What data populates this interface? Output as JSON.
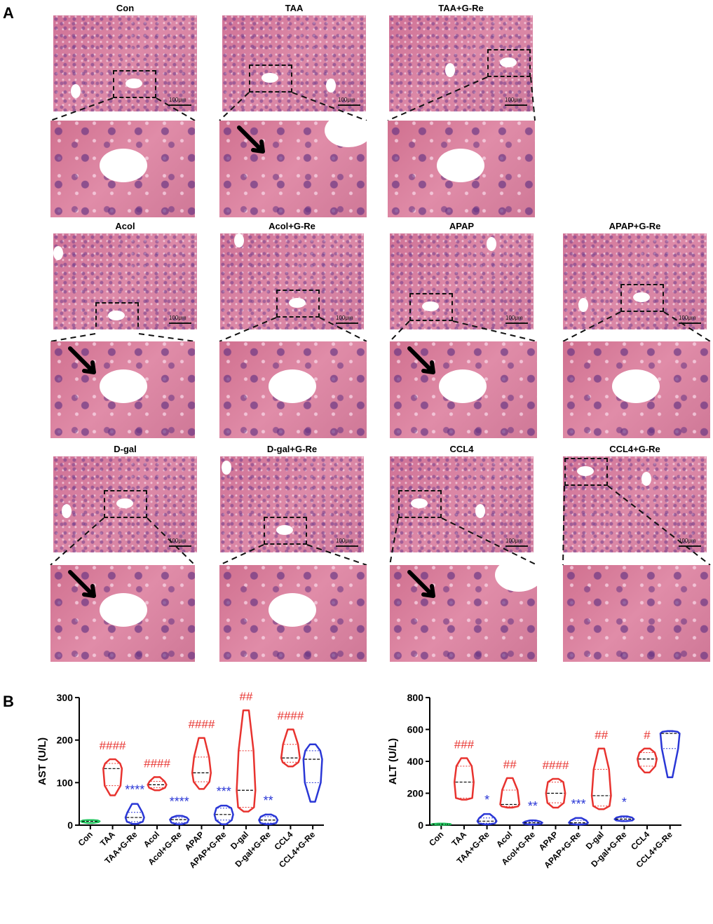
{
  "panel_a": {
    "letter": "A",
    "scale_label": "100μm",
    "panels": [
      {
        "title": "Con"
      },
      {
        "title": "TAA"
      },
      {
        "title": "TAA+G-Re"
      },
      {
        "title": "Acol"
      },
      {
        "title": "Acol+G-Re"
      },
      {
        "title": "APAP"
      },
      {
        "title": "APAP+G-Re"
      },
      {
        "title": "D-gal"
      },
      {
        "title": "D-gal+G-Re"
      },
      {
        "title": "CCL4"
      },
      {
        "title": "CCL4+G-Re"
      }
    ]
  },
  "panel_b": {
    "letter": "B"
  },
  "colors": {
    "con": "#22c55e",
    "model": "#e8332f",
    "treat": "#2a37d6",
    "text_model": "#e8332f",
    "text_treat": "#2a37d6"
  },
  "chart_data": [
    {
      "type": "violin",
      "ylabel": "AST (U/L)",
      "ylim": [
        0,
        300
      ],
      "yticks": [
        0,
        100,
        200,
        300
      ],
      "categories": [
        "Con",
        "TAA",
        "TAA+G-Re",
        "Acol",
        "Acol+G-Re",
        "APAP",
        "APAP+G-Re",
        "D-gal",
        "D-gal+G-Re",
        "CCL4",
        "CCL4+G-Re"
      ],
      "groups": [
        {
          "name": "Con",
          "color": "con",
          "min": 5,
          "max": 12,
          "median": 9,
          "q1": 7,
          "q3": 11,
          "sig": ""
        },
        {
          "name": "TAA",
          "color": "model",
          "min": 70,
          "max": 155,
          "median": 133,
          "q1": 93,
          "q3": 145,
          "sig": "####"
        },
        {
          "name": "TAA+G-Re",
          "color": "treat",
          "min": 3,
          "max": 50,
          "median": 18,
          "q1": 8,
          "q3": 30,
          "sig": "****"
        },
        {
          "name": "Acol",
          "color": "model",
          "min": 82,
          "max": 113,
          "median": 95,
          "q1": 88,
          "q3": 103,
          "sig": "####"
        },
        {
          "name": "Acol+G-Re",
          "color": "treat",
          "min": 2,
          "max": 22,
          "median": 13,
          "q1": 6,
          "q3": 18,
          "sig": "****"
        },
        {
          "name": "APAP",
          "color": "model",
          "min": 85,
          "max": 205,
          "median": 123,
          "q1": 102,
          "q3": 160,
          "sig": "####"
        },
        {
          "name": "APAP+G-Re",
          "color": "treat",
          "min": 2,
          "max": 46,
          "median": 25,
          "q1": 12,
          "q3": 40,
          "sig": "***"
        },
        {
          "name": "D-gal",
          "color": "model",
          "min": 32,
          "max": 270,
          "median": 82,
          "q1": 42,
          "q3": 175,
          "sig": "##"
        },
        {
          "name": "D-gal+G-Re",
          "color": "treat",
          "min": 2,
          "max": 25,
          "median": 12,
          "q1": 5,
          "q3": 20,
          "sig": "**"
        },
        {
          "name": "CCL4",
          "color": "model",
          "min": 138,
          "max": 225,
          "median": 158,
          "q1": 148,
          "q3": 190,
          "sig": "####"
        },
        {
          "name": "CCL4+G-Re",
          "color": "treat",
          "min": 55,
          "max": 190,
          "median": 155,
          "q1": 100,
          "q3": 175,
          "sig": ""
        }
      ]
    },
    {
      "type": "violin",
      "ylabel": "ALT (U/L)",
      "ylim": [
        0,
        800
      ],
      "yticks": [
        0,
        200,
        400,
        600,
        800
      ],
      "categories": [
        "Con",
        "TAA",
        "TAA+G-Re",
        "Acol",
        "Acol+G-Re",
        "APAP",
        "APAP+G-Re",
        "D-gal",
        "D-gal+G-Re",
        "CCL4",
        "CCL4+G-Re"
      ],
      "groups": [
        {
          "name": "Con",
          "color": "con",
          "min": 2,
          "max": 10,
          "median": 6,
          "q1": 4,
          "q3": 8,
          "sig": ""
        },
        {
          "name": "TAA",
          "color": "model",
          "min": 160,
          "max": 420,
          "median": 270,
          "q1": 170,
          "q3": 370,
          "sig": "###"
        },
        {
          "name": "TAA+G-Re",
          "color": "treat",
          "min": 5,
          "max": 70,
          "median": 25,
          "q1": 12,
          "q3": 45,
          "sig": "*"
        },
        {
          "name": "Acol",
          "color": "model",
          "min": 110,
          "max": 295,
          "median": 130,
          "q1": 118,
          "q3": 220,
          "sig": "##"
        },
        {
          "name": "Acol+G-Re",
          "color": "treat",
          "min": 3,
          "max": 30,
          "median": 15,
          "q1": 8,
          "q3": 22,
          "sig": "**"
        },
        {
          "name": "APAP",
          "color": "model",
          "min": 110,
          "max": 290,
          "median": 200,
          "q1": 140,
          "q3": 270,
          "sig": "####"
        },
        {
          "name": "APAP+G-Re",
          "color": "treat",
          "min": 3,
          "max": 45,
          "median": 15,
          "q1": 8,
          "q3": 30,
          "sig": "***"
        },
        {
          "name": "D-gal",
          "color": "model",
          "min": 100,
          "max": 480,
          "median": 185,
          "q1": 120,
          "q3": 350,
          "sig": "##"
        },
        {
          "name": "D-gal+G-Re",
          "color": "treat",
          "min": 25,
          "max": 55,
          "median": 38,
          "q1": 30,
          "q3": 48,
          "sig": "*"
        },
        {
          "name": "CCL4",
          "color": "model",
          "min": 330,
          "max": 480,
          "median": 415,
          "q1": 370,
          "q3": 455,
          "sig": "#"
        },
        {
          "name": "CCL4+G-Re",
          "color": "treat",
          "min": 300,
          "max": 590,
          "median": 575,
          "q1": 480,
          "q3": 585,
          "sig": ""
        }
      ]
    }
  ]
}
